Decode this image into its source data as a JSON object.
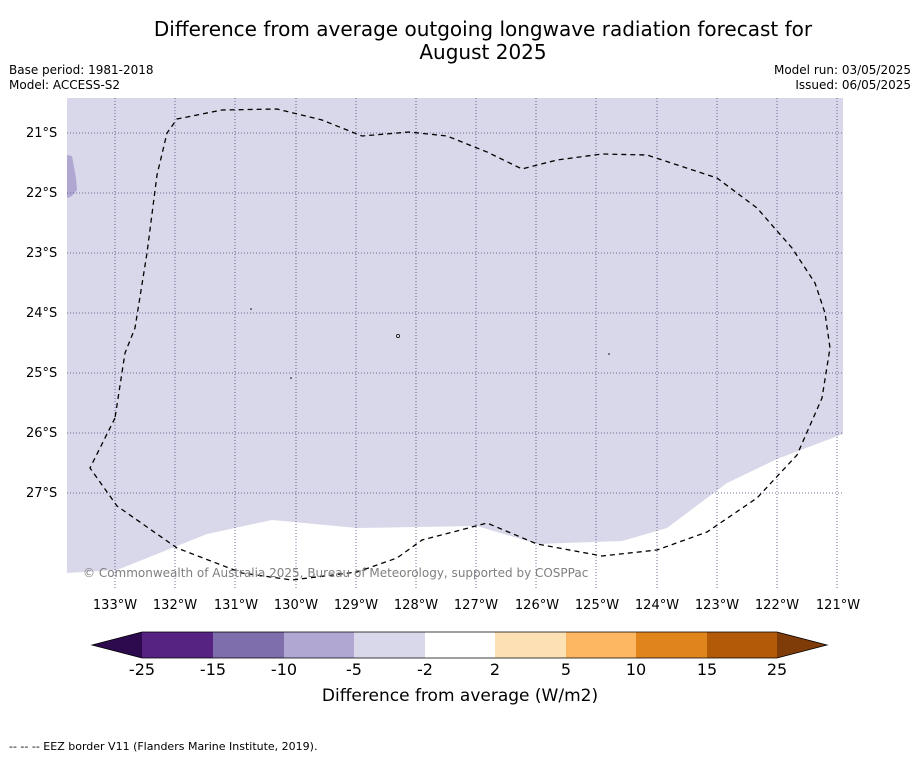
{
  "title_line1": "Difference from average outgoing longwave radiation forecast for",
  "title_line2": "August 2025",
  "base_period": "Base period: 1981-2018",
  "model": "Model: ACCESS-S2",
  "model_run": "Model run: 03/05/2025",
  "issued": "Issued: 06/05/2025",
  "copyright": "© Commonwealth of Australia 2025, Bureau of Meteorology, supported by COSPPac",
  "lat_labels": [
    "21°S",
    "22°S",
    "23°S",
    "24°S",
    "25°S",
    "26°S",
    "27°S"
  ],
  "lon_labels": [
    "133°W",
    "132°W",
    "131°W",
    "130°W",
    "129°W",
    "128°W",
    "127°W",
    "126°W",
    "125°W",
    "124°W",
    "123°W",
    "122°W",
    "121°W"
  ],
  "colorbar": {
    "ticks": [
      "-25",
      "-15",
      "-10",
      "-5",
      "-2",
      "2",
      "5",
      "10",
      "15",
      "25"
    ],
    "colors": [
      "#2d0a4e",
      "#562383",
      "#7e6eab",
      "#b0a8d2",
      "#d8d8ea",
      "#ffffff",
      "#fee0b5",
      "#fdb662",
      "#e0851c",
      "#b35a08",
      "#7f3b08"
    ],
    "label": "Difference from average (W/m2)"
  },
  "footer": "-- -- -- EEZ border V11 (Flanders Marine Institute, 2019)."
}
